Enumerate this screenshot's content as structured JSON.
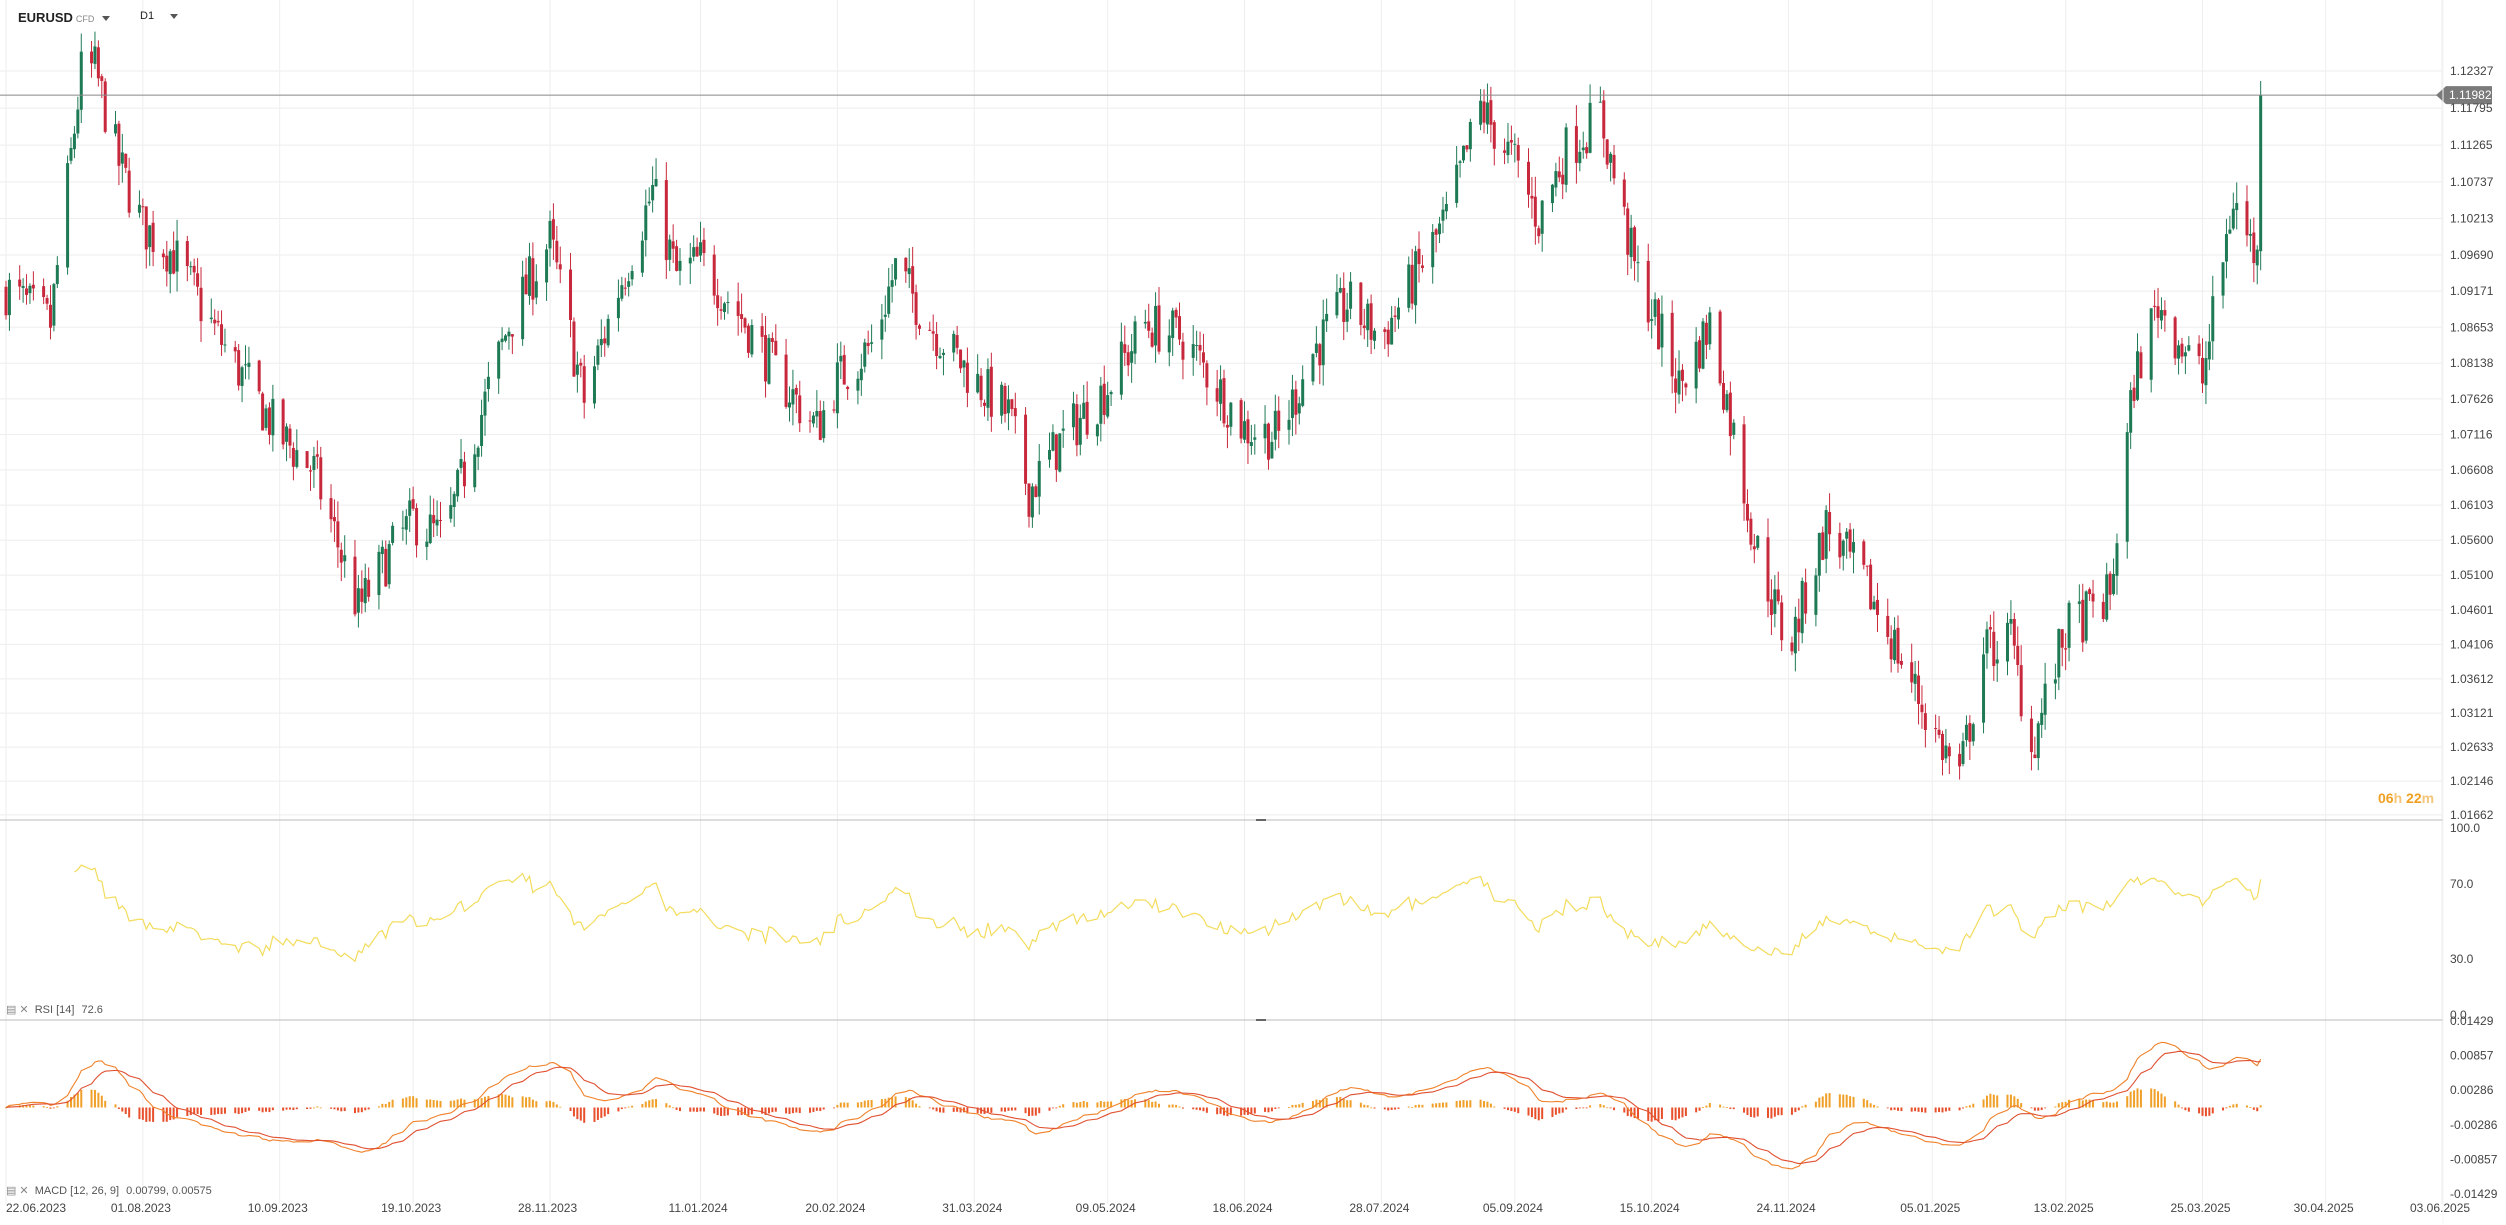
{
  "header": {
    "symbol": "EURUSD",
    "symbol_sub": "CFD",
    "timeframe": "D1"
  },
  "price_badge": "1.11982",
  "countdown": {
    "hours": "06",
    "h": "h",
    "minutes": "22",
    "m": "m"
  },
  "indicators": {
    "rsi": {
      "name": "RSI",
      "params": "[14]",
      "value": "72.6"
    },
    "macd": {
      "name": "MACD",
      "params": "[12, 26, 9]",
      "value1": "0.00799",
      "value2": "0.00575"
    }
  },
  "colors": {
    "up": "#1e7a55",
    "down": "#c8283c",
    "rsi_line": "#f3dc5c",
    "macd_line": "#f0822a",
    "signal_line": "#e05030",
    "hist_pos": "#f0a028",
    "hist_neg": "#e8502c",
    "grid": "#eeeeee",
    "badge": "#7a7a7a"
  },
  "chart_data": {
    "type": "candlestick",
    "timeframe": "D1",
    "price_axis": {
      "ticks": [
        "1.12327",
        "1.11795",
        "1.11265",
        "1.10737",
        "1.10213",
        "1.09690",
        "1.09171",
        "1.08653",
        "1.08138",
        "1.07626",
        "1.07116",
        "1.06608",
        "1.06103",
        "1.05600",
        "1.05100",
        "1.04601",
        "1.04106",
        "1.03612",
        "1.03121",
        "1.02633",
        "1.02146",
        "1.01662"
      ],
      "range": [
        1.0166,
        1.126
      ],
      "current": 1.11982
    },
    "date_axis": {
      "ticks": [
        "22.06.2023",
        "01.08.2023",
        "10.09.2023",
        "19.10.2023",
        "28.11.2023",
        "11.01.2024",
        "20.02.2024",
        "31.03.2024",
        "09.05.2024",
        "18.06.2024",
        "28.07.2024",
        "05.09.2024",
        "15.10.2024",
        "24.11.2024",
        "05.01.2025",
        "13.02.2025",
        "25.03.2025",
        "30.04.2025",
        "03.06.2025"
      ]
    },
    "price_path": [
      [
        "22.06.2023",
        1.092
      ],
      [
        "05.07.2023",
        1.087
      ],
      [
        "14.07.2023",
        1.123
      ],
      [
        "18.07.2023",
        1.1235
      ],
      [
        "25.07.2023",
        1.11
      ],
      [
        "01.08.2023",
        1.101
      ],
      [
        "10.08.2023",
        1.097
      ],
      [
        "22.08.2023",
        1.086
      ],
      [
        "01.09.2023",
        1.078
      ],
      [
        "10.09.2023",
        1.071
      ],
      [
        "20.09.2023",
        1.066
      ],
      [
        "26.09.2023",
        1.057
      ],
      [
        "03.10.2023",
        1.046
      ],
      [
        "12.10.2023",
        1.054
      ],
      [
        "19.10.2023",
        1.059
      ],
      [
        "28.10.2023",
        1.056
      ],
      [
        "06.11.2023",
        1.071
      ],
      [
        "16.11.2023",
        1.087
      ],
      [
        "28.11.2023",
        1.099
      ],
      [
        "08.12.2023",
        1.076
      ],
      [
        "18.12.2023",
        1.092
      ],
      [
        "28.12.2023",
        1.106
      ],
      [
        "04.01.2024",
        1.094
      ],
      [
        "11.01.2024",
        1.096
      ],
      [
        "23.01.2024",
        1.088
      ],
      [
        "02.02.2024",
        1.08
      ],
      [
        "14.02.2024",
        1.072
      ],
      [
        "20.02.2024",
        1.079
      ],
      [
        "01.03.2024",
        1.084
      ],
      [
        "08.03.2024",
        1.095
      ],
      [
        "18.03.2024",
        1.087
      ],
      [
        "31.03.2024",
        1.079
      ],
      [
        "10.04.2024",
        1.074
      ],
      [
        "16.04.2024",
        1.063
      ],
      [
        "25.04.2024",
        1.07
      ],
      [
        "09.05.2024",
        1.078
      ],
      [
        "20.05.2024",
        1.087
      ],
      [
        "31.05.2024",
        1.085
      ],
      [
        "10.06.2024",
        1.078
      ],
      [
        "18.06.2024",
        1.072
      ],
      [
        "28.06.2024",
        1.071
      ],
      [
        "08.07.2024",
        1.083
      ],
      [
        "18.07.2024",
        1.09
      ],
      [
        "28.07.2024",
        1.085
      ],
      [
        "05.08.2024",
        1.092
      ],
      [
        "16.08.2024",
        1.102
      ],
      [
        "26.08.2024",
        1.118
      ],
      [
        "05.09.2024",
        1.11
      ],
      [
        "12.09.2024",
        1.102
      ],
      [
        "20.09.2024",
        1.112
      ],
      [
        "30.09.2024",
        1.117
      ],
      [
        "10.10.2024",
        1.095
      ],
      [
        "15.10.2024",
        1.089
      ],
      [
        "23.10.2024",
        1.078
      ],
      [
        "01.11.2024",
        1.087
      ],
      [
        "06.11.2024",
        1.076
      ],
      [
        "14.11.2024",
        1.056
      ],
      [
        "24.11.2024",
        1.04
      ],
      [
        "05.12.2024",
        1.058
      ],
      [
        "16.12.2024",
        1.05
      ],
      [
        "26.12.2024",
        1.04
      ],
      [
        "05.01.2025",
        1.029
      ],
      [
        "13.01.2025",
        1.022
      ],
      [
        "20.01.2025",
        1.04
      ],
      [
        "28.01.2025",
        1.042
      ],
      [
        "03.02.2025",
        1.026
      ],
      [
        "13.02.2025",
        1.043
      ],
      [
        "26.02.2025",
        1.048
      ],
      [
        "05.03.2025",
        1.079
      ],
      [
        "12.03.2025",
        1.09
      ],
      [
        "25.03.2025",
        1.079
      ],
      [
        "03.04.2025",
        1.105
      ],
      [
        "10.04.2025",
        1.096
      ],
      [
        "11.04.2025",
        1.1198
      ]
    ],
    "rsi": {
      "name": "RSI [14]",
      "value": 72.6,
      "levels": [
        100.0,
        70.0,
        30.0,
        0.0
      ],
      "level_labels": [
        "100.0",
        "70.0",
        "30.0",
        "0.0"
      ]
    },
    "macd": {
      "name": "MACD [12, 26, 9]",
      "values": [
        0.00799,
        0.00575
      ],
      "ticks": [
        "0.01429",
        "0.00857",
        "0.00286",
        "-0.00286",
        "-0.00857",
        "-0.01429"
      ]
    }
  }
}
